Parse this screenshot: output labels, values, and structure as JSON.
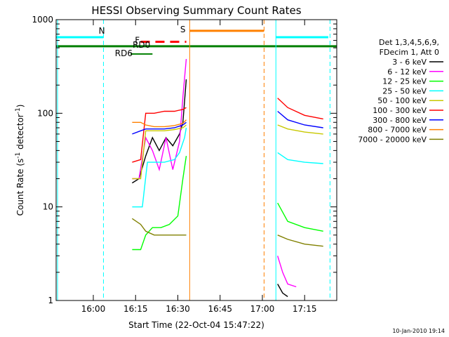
{
  "chart_data": {
    "type": "line",
    "title": "HESSI Observing Summary Count Rates",
    "xlabel": "Start Time (22-Oct-04 15:47:22)",
    "ylabel_main": "Count Rate (s",
    "ylabel_sup1": "-1",
    "ylabel_mid": " detector",
    "ylabel_sup2": "-1",
    "ylabel_end": ")",
    "yscale": "log",
    "ylim": [
      1,
      1000
    ],
    "xlim_minutes": [
      15.78,
      17.44
    ],
    "x_ticks": [
      {
        "value": 16.0,
        "label": "16:00"
      },
      {
        "value": 16.25,
        "label": "16:15"
      },
      {
        "value": 16.5,
        "label": "16:30"
      },
      {
        "value": 16.75,
        "label": "16:45"
      },
      {
        "value": 17.0,
        "label": "17:00"
      },
      {
        "value": 17.25,
        "label": "17:15"
      }
    ],
    "y_ticks": [
      {
        "value": 1,
        "label": "1"
      },
      {
        "value": 10,
        "label": "10"
      },
      {
        "value": 100,
        "label": "100"
      },
      {
        "value": 1000,
        "label": "1000"
      }
    ],
    "legend_header_1": "Det 1,3,4,5,6,9,",
    "legend_header_2": "FDecim 1, Att 0",
    "legend_placement": "right",
    "timestamp": "10-Jan-2010 19:14",
    "flags": [
      {
        "name": "N",
        "color": "#00ffff",
        "value": 650
      },
      {
        "name": "F",
        "color": "#ff0000",
        "value": 580
      },
      {
        "name": "S",
        "color": "#ff8000",
        "value": 760
      },
      {
        "name": "RD0",
        "color": "#007f00",
        "value": 520
      },
      {
        "name": "RD6",
        "color": "#007f00",
        "value": 430
      }
    ],
    "series": [
      {
        "name": "3 - 6 keV",
        "color": "#000000",
        "x": [
          16.23,
          16.27,
          16.31,
          16.35,
          16.39,
          16.43,
          16.47,
          16.51,
          16.53,
          16.55,
          17.09,
          17.12,
          17.15
        ],
        "y": [
          18,
          20,
          35,
          55,
          40,
          55,
          45,
          60,
          80,
          230,
          1.5,
          1.2,
          1.1
        ]
      },
      {
        "name": "6 - 12 keV",
        "color": "#ff00ff",
        "x": [
          16.23,
          16.27,
          16.31,
          16.35,
          16.39,
          16.43,
          16.47,
          16.51,
          16.53,
          16.55,
          17.09,
          17.12,
          17.15,
          17.2
        ],
        "y": [
          20,
          20,
          55,
          40,
          25,
          55,
          25,
          50,
          150,
          380,
          3,
          2,
          1.5,
          1.4
        ]
      },
      {
        "name": "12 - 25 keV",
        "color": "#00ff00",
        "x": [
          16.23,
          16.28,
          16.31,
          16.35,
          16.4,
          16.45,
          16.5,
          16.53,
          16.55,
          17.09,
          17.15,
          17.25,
          17.36
        ],
        "y": [
          3.5,
          3.5,
          5,
          6,
          6,
          6.5,
          8,
          20,
          35,
          11,
          7,
          6,
          5.5
        ]
      },
      {
        "name": "25 - 50 keV",
        "color": "#00ffff",
        "x": [
          16.23,
          16.29,
          16.32,
          16.36,
          16.42,
          16.48,
          16.51,
          16.54,
          16.55,
          17.09,
          17.15,
          17.25,
          17.36
        ],
        "y": [
          10,
          10,
          30,
          30,
          30,
          32,
          38,
          55,
          70,
          38,
          32,
          30,
          29
        ]
      },
      {
        "name": "50 - 100 keV",
        "color": "#c8c800",
        "x": [
          16.23,
          16.28,
          16.31,
          16.36,
          16.42,
          16.48,
          16.53,
          16.55,
          17.09,
          17.15,
          17.25,
          17.36
        ],
        "y": [
          20,
          20,
          65,
          65,
          65,
          67,
          70,
          75,
          75,
          68,
          63,
          60
        ]
      },
      {
        "name": "100 - 300 keV",
        "color": "#ff0000",
        "x": [
          16.23,
          16.28,
          16.31,
          16.36,
          16.42,
          16.48,
          16.53,
          16.55,
          17.09,
          17.15,
          17.25,
          17.36
        ],
        "y": [
          30,
          32,
          100,
          100,
          105,
          105,
          110,
          115,
          145,
          115,
          95,
          87
        ]
      },
      {
        "name": "300 - 800 keV",
        "color": "#0000ff",
        "x": [
          16.23,
          16.28,
          16.31,
          16.36,
          16.42,
          16.48,
          16.53,
          16.55,
          17.09,
          17.15,
          17.25,
          17.36
        ],
        "y": [
          60,
          65,
          68,
          68,
          68,
          70,
          75,
          80,
          105,
          85,
          75,
          70
        ]
      },
      {
        "name": "800 - 7000 keV",
        "color": "#ff8000",
        "x": [
          16.23,
          16.28,
          16.31,
          16.36,
          16.42,
          16.48,
          16.53,
          16.55
        ],
        "y": [
          80,
          80,
          75,
          72,
          72,
          74,
          78,
          85
        ]
      },
      {
        "name": "7000 - 20000 keV",
        "color": "#808000",
        "x": [
          16.23,
          16.28,
          16.31,
          16.36,
          16.42,
          16.48,
          16.53,
          16.55,
          17.09,
          17.15,
          17.25,
          17.36
        ],
        "y": [
          7.5,
          6.5,
          5.5,
          5,
          5,
          5,
          5,
          5,
          5,
          4.5,
          4,
          3.8
        ]
      }
    ]
  }
}
